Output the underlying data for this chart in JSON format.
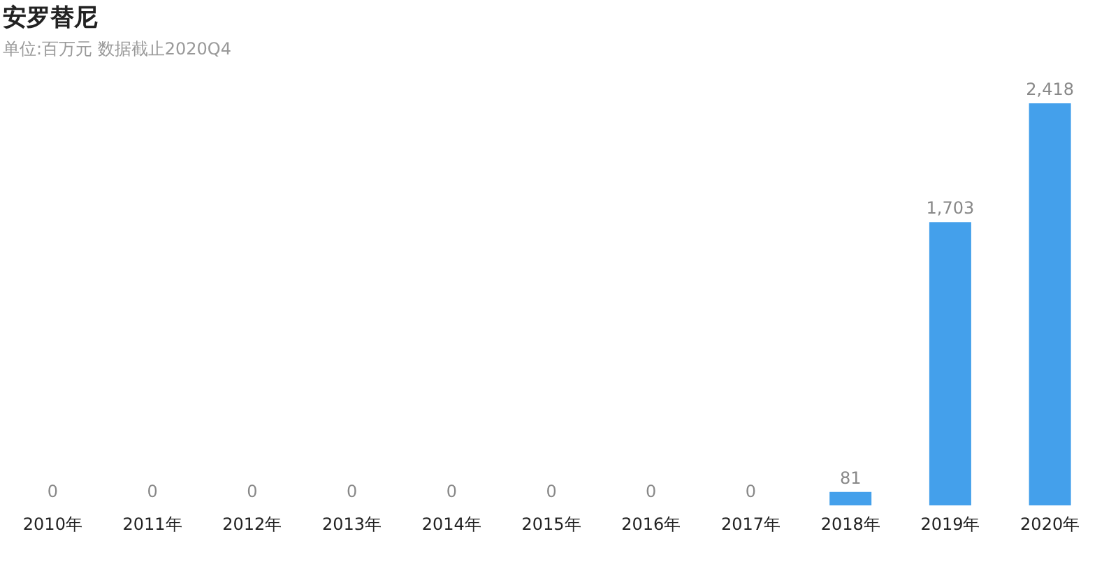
{
  "chart_data": {
    "type": "bar",
    "title": "安罗替尼",
    "subtitle": "单位:百万元    数据截止2020Q4",
    "categories": [
      "2010年",
      "2011年",
      "2012年",
      "2013年",
      "2014年",
      "2015年",
      "2016年",
      "2017年",
      "2018年",
      "2019年",
      "2020年"
    ],
    "values": [
      0,
      0,
      0,
      0,
      0,
      0,
      0,
      0,
      81,
      1703,
      2418
    ],
    "value_labels": [
      "0",
      "0",
      "0",
      "0",
      "0",
      "0",
      "0",
      "0",
      "81",
      "1,703",
      "2,418"
    ],
    "color": "#44a0eb"
  }
}
